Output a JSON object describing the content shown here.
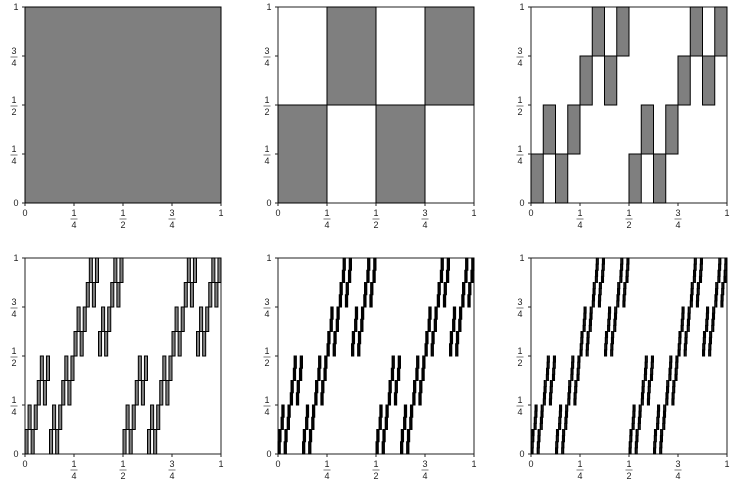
{
  "figure": {
    "panel_count": 6,
    "grid": "2 rows x 3 columns",
    "fill_color": "#7f7f7f",
    "stroke_color": "#000000",
    "ticks": [
      {
        "value": 0,
        "label": "0"
      },
      {
        "value": 0.25,
        "num": "1",
        "den": "4"
      },
      {
        "value": 0.5,
        "num": "1",
        "den": "2"
      },
      {
        "value": 0.75,
        "num": "3",
        "den": "4"
      },
      {
        "value": 1,
        "label": "1"
      }
    ],
    "panels": [
      {
        "level": 0
      },
      {
        "level": 1
      },
      {
        "level": 2
      },
      {
        "level": 3
      },
      {
        "level": 4
      },
      {
        "level": 5
      }
    ]
  }
}
